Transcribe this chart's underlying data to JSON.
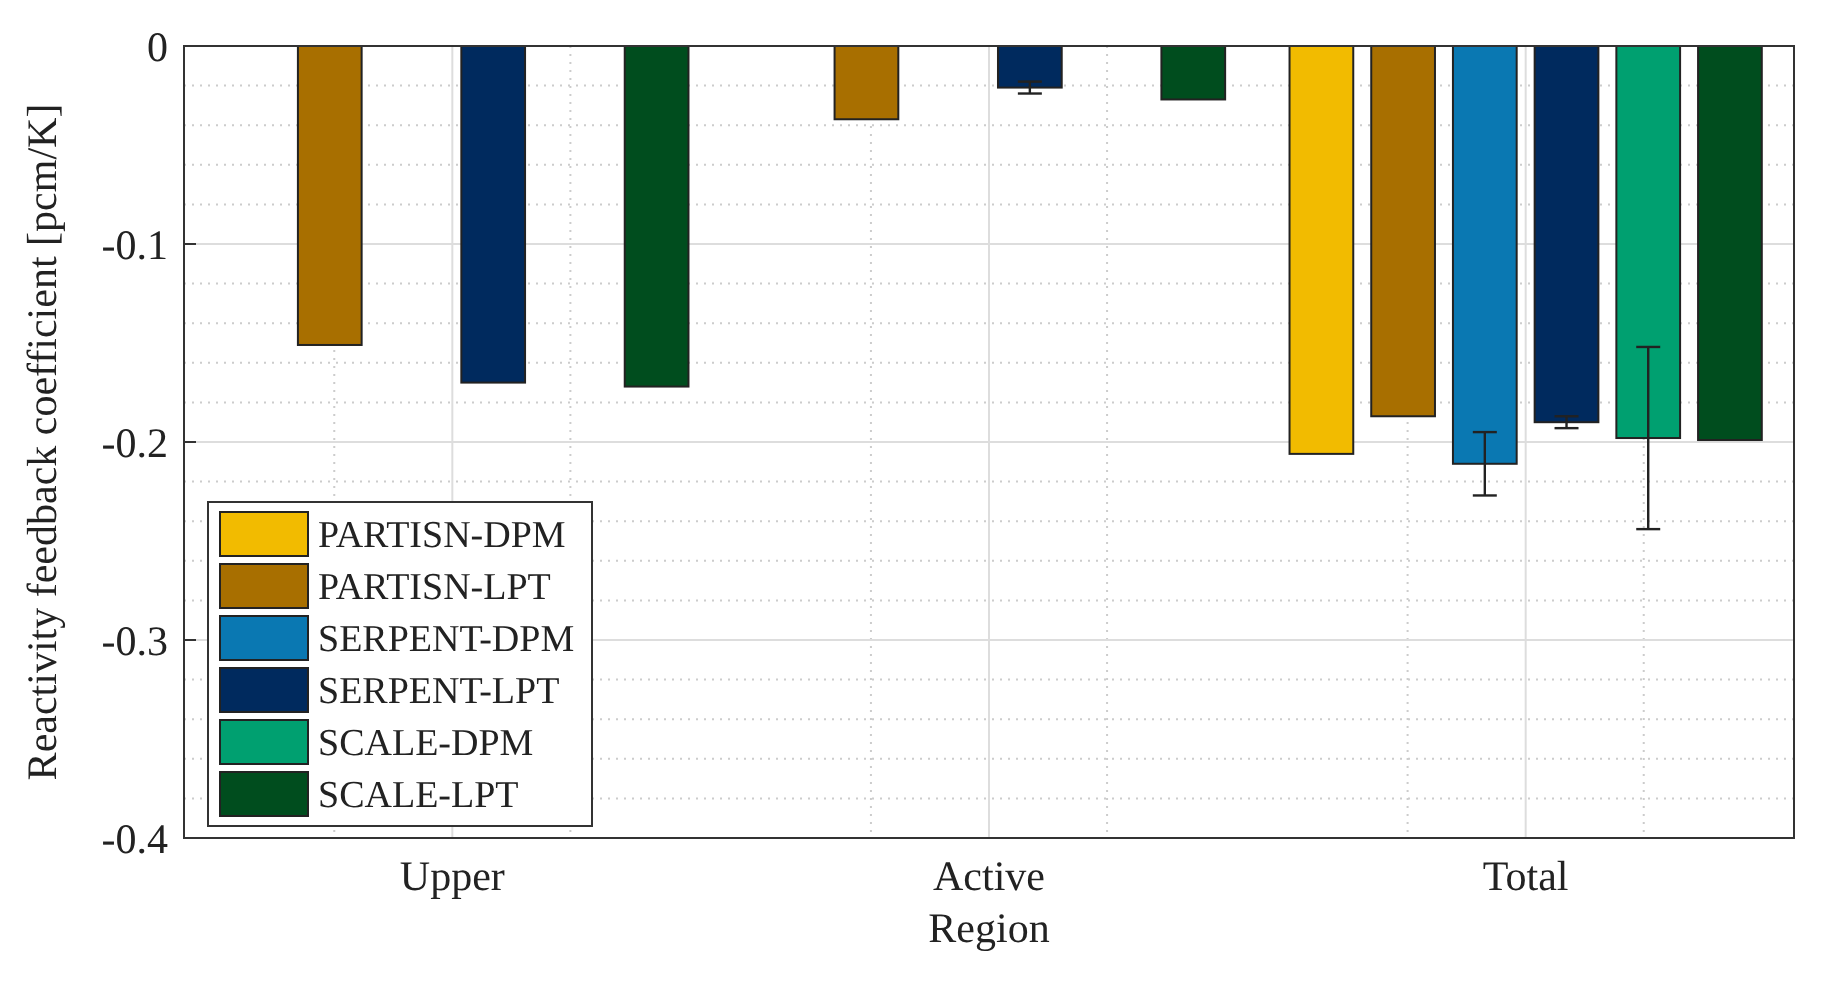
{
  "chart_data": {
    "type": "bar",
    "xlabel": "Region",
    "ylabel": "Reactivity feedback coefficient [pcm/K]",
    "categories": [
      "Upper",
      "Active",
      "Total"
    ],
    "ylim": [
      -0.4,
      0
    ],
    "yticks": [
      -0.4,
      -0.3,
      -0.2,
      -0.1,
      0
    ],
    "grid": true,
    "legend": "bottom left",
    "series": [
      {
        "name": "PARTISN-DPM",
        "color": "#f2bb00",
        "values": [
          0,
          0,
          -0.206
        ]
      },
      {
        "name": "PARTISN-LPT",
        "color": "#a86f00",
        "values": [
          -0.151,
          -0.037,
          -0.187
        ]
      },
      {
        "name": "SERPENT-DPM",
        "color": "#0a78b2",
        "values": [
          0,
          0,
          -0.211
        ],
        "errors": [
          null,
          null,
          0.016
        ]
      },
      {
        "name": "SERPENT-LPT",
        "color": "#002a5e",
        "values": [
          -0.17,
          -0.021,
          -0.19
        ],
        "errors": [
          null,
          0.003,
          0.003
        ]
      },
      {
        "name": "SCALE-DPM",
        "color": "#00a070",
        "values": [
          0,
          0,
          -0.198
        ],
        "errors": [
          null,
          null,
          0.046
        ]
      },
      {
        "name": "SCALE-LPT",
        "color": "#004d1e",
        "values": [
          -0.172,
          -0.027,
          -0.199
        ]
      }
    ]
  }
}
